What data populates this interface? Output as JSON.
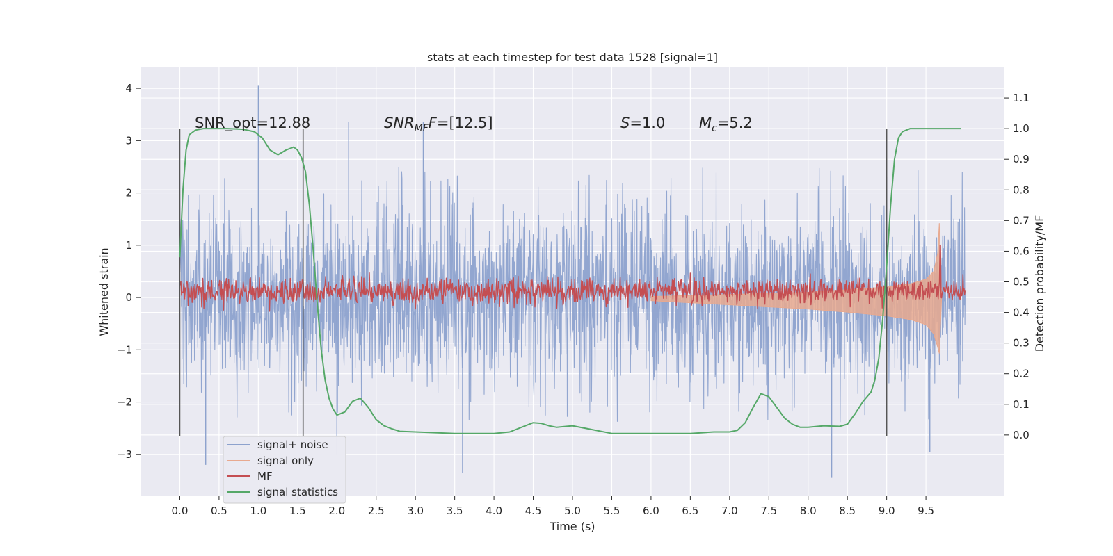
{
  "chart_data": {
    "type": "line",
    "title": "stats at each timestep for test data 1528 [signal=1]",
    "xlabel": "Time (s)",
    "ylabel": "Whitened strain",
    "y2label": "Detection probability/MF",
    "xlim": [
      -0.5,
      10.5
    ],
    "ylim": [
      -3.8,
      4.4
    ],
    "y2lim": [
      -0.2,
      1.2
    ],
    "x_ticks": [
      0.0,
      0.5,
      1.0,
      1.5,
      2.0,
      2.5,
      3.0,
      3.5,
      4.0,
      4.5,
      5.0,
      5.5,
      6.0,
      6.5,
      7.0,
      7.5,
      8.0,
      8.5,
      9.0,
      9.5
    ],
    "x_tick_labels": [
      "0.0",
      "0.5",
      "1.0",
      "1.5",
      "2.0",
      "2.5",
      "3.0",
      "3.5",
      "4.0",
      "4.5",
      "5.0",
      "5.5",
      "6.0",
      "6.5",
      "7.0",
      "7.5",
      "8.0",
      "8.5",
      "9.0",
      "9.5"
    ],
    "y_ticks": [
      4,
      3,
      2,
      1,
      0,
      -1,
      -2,
      -3
    ],
    "y_tick_labels": [
      "4",
      "3",
      "2",
      "1",
      "0",
      "−1",
      "−2",
      "−3"
    ],
    "y2_ticks": [
      1.1,
      1.0,
      0.9,
      0.8,
      0.7,
      0.6,
      0.5,
      0.4,
      0.3,
      0.2,
      0.1,
      0.0
    ],
    "y2_tick_labels": [
      "1.1",
      "1.0",
      "0.9",
      "0.8",
      "0.7",
      "0.6",
      "0.5",
      "0.4",
      "0.3",
      "0.2",
      "0.1",
      "0.0"
    ],
    "grid": true,
    "legend_position": "lower-left",
    "annotations": {
      "snr_opt": "SNR_opt=12.88",
      "snr_mf_base": "SNR",
      "snr_mf_sub": "MF",
      "snr_mf_rest": "=[12.5]",
      "s_base": "S",
      "s_rest": "=1.0",
      "mc_base": "M",
      "mc_sub": "c",
      "mc_rest": "=5.2"
    },
    "vertical_markers": [
      0.0,
      1.57,
      9.0
    ],
    "marker_span": [
      -2.65,
      3.22
    ],
    "series": [
      {
        "name": "signal+ noise",
        "color": "#8da2cd",
        "axis": "left",
        "x_range": [
          0.0,
          10.0
        ],
        "envelope_upper": 2.5,
        "envelope_lower": -2.4,
        "notable_peaks": [
          [
            1.0,
            4.05
          ],
          [
            2.15,
            3.35
          ],
          [
            3.1,
            3.35
          ],
          [
            9.0,
            2.3
          ]
        ],
        "notable_troughs": [
          [
            0.33,
            -3.2
          ],
          [
            2.0,
            -3.0
          ],
          [
            3.6,
            -3.35
          ],
          [
            8.3,
            -3.45
          ],
          [
            9.55,
            -2.95
          ]
        ]
      },
      {
        "name": "signal only",
        "color": "#e8a98f",
        "axis": "left",
        "x": [
          6.0,
          6.5,
          7.0,
          7.5,
          8.0,
          8.5,
          9.0,
          9.3,
          9.5,
          9.6,
          9.65,
          9.67,
          9.7
        ],
        "upper": [
          0.02,
          0.04,
          0.06,
          0.08,
          0.1,
          0.15,
          0.2,
          0.26,
          0.35,
          0.5,
          0.85,
          1.42,
          0.0
        ],
        "lower": [
          -0.06,
          -0.1,
          -0.14,
          -0.18,
          -0.22,
          -0.28,
          -0.35,
          -0.42,
          -0.52,
          -0.7,
          -0.95,
          -1.07,
          0.0
        ]
      },
      {
        "name": "MF",
        "color": "#c44e52",
        "axis": "right",
        "x_range": [
          0.0,
          10.0
        ],
        "baseline": 0.47,
        "noise_amplitude": 0.02,
        "spikes": [
          [
            9.68,
            0.62
          ]
        ]
      },
      {
        "name": "signal statistics",
        "color": "#55a868",
        "axis": "right",
        "x": [
          0.0,
          0.04,
          0.08,
          0.12,
          0.2,
          0.3,
          0.4,
          0.6,
          0.8,
          0.95,
          1.05,
          1.15,
          1.25,
          1.35,
          1.45,
          1.5,
          1.55,
          1.6,
          1.65,
          1.7,
          1.75,
          1.8,
          1.85,
          1.9,
          1.95,
          2.0,
          2.1,
          2.2,
          2.3,
          2.4,
          2.5,
          2.6,
          2.7,
          2.8,
          3.0,
          3.5,
          4.0,
          4.2,
          4.4,
          4.5,
          4.6,
          4.7,
          4.8,
          5.0,
          5.2,
          5.5,
          6.0,
          6.5,
          6.8,
          7.0,
          7.1,
          7.2,
          7.3,
          7.4,
          7.5,
          7.6,
          7.7,
          7.8,
          7.9,
          8.0,
          8.2,
          8.4,
          8.5,
          8.6,
          8.7,
          8.8,
          8.85,
          8.9,
          8.95,
          9.0,
          9.05,
          9.1,
          9.15,
          9.2,
          9.3,
          9.5,
          9.7,
          9.9,
          9.95
        ],
        "values": [
          0.58,
          0.8,
          0.93,
          0.98,
          0.995,
          1.0,
          1.0,
          1.0,
          0.998,
          0.99,
          0.97,
          0.93,
          0.915,
          0.93,
          0.94,
          0.93,
          0.905,
          0.86,
          0.75,
          0.6,
          0.43,
          0.28,
          0.18,
          0.12,
          0.085,
          0.065,
          0.075,
          0.11,
          0.12,
          0.09,
          0.05,
          0.03,
          0.02,
          0.012,
          0.01,
          0.005,
          0.005,
          0.01,
          0.03,
          0.04,
          0.038,
          0.03,
          0.025,
          0.03,
          0.02,
          0.005,
          0.005,
          0.005,
          0.01,
          0.01,
          0.015,
          0.04,
          0.09,
          0.135,
          0.125,
          0.09,
          0.055,
          0.035,
          0.025,
          0.025,
          0.03,
          0.028,
          0.035,
          0.07,
          0.11,
          0.14,
          0.18,
          0.25,
          0.38,
          0.55,
          0.75,
          0.9,
          0.97,
          0.99,
          1.0,
          1.0,
          1.0,
          1.0,
          1.0
        ]
      }
    ]
  }
}
